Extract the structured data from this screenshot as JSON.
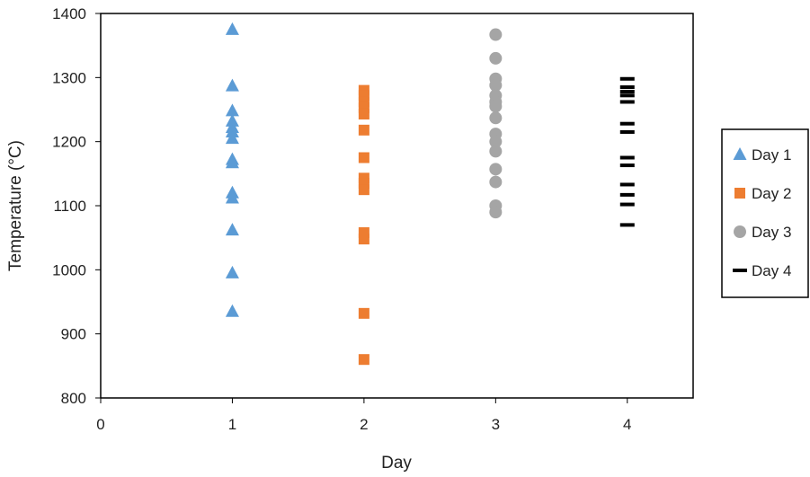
{
  "chart_data": {
    "type": "scatter",
    "xlabel": "Day",
    "ylabel": "Temperature (°C)",
    "xlim": [
      0,
      4.5
    ],
    "ylim": [
      800,
      1400
    ],
    "x_ticks": [
      0,
      1,
      2,
      3,
      4
    ],
    "y_ticks": [
      800,
      900,
      1000,
      1100,
      1200,
      1300,
      1400
    ],
    "grid": false,
    "legend_position": "right",
    "series": [
      {
        "name": "Day 1",
        "marker": "triangle",
        "color": "#5B9BD5",
        "points": [
          {
            "x": 1,
            "y": 1375
          },
          {
            "x": 1,
            "y": 1287
          },
          {
            "x": 1,
            "y": 1248
          },
          {
            "x": 1,
            "y": 1232
          },
          {
            "x": 1,
            "y": 1222
          },
          {
            "x": 1,
            "y": 1215
          },
          {
            "x": 1,
            "y": 1205
          },
          {
            "x": 1,
            "y": 1172
          },
          {
            "x": 1,
            "y": 1167
          },
          {
            "x": 1,
            "y": 1120
          },
          {
            "x": 1,
            "y": 1112
          },
          {
            "x": 1,
            "y": 1062
          },
          {
            "x": 1,
            "y": 995
          },
          {
            "x": 1,
            "y": 935
          }
        ]
      },
      {
        "name": "Day 2",
        "marker": "square",
        "color": "#ED7D31",
        "points": [
          {
            "x": 2,
            "y": 1280
          },
          {
            "x": 2,
            "y": 1272
          },
          {
            "x": 2,
            "y": 1262
          },
          {
            "x": 2,
            "y": 1253
          },
          {
            "x": 2,
            "y": 1243
          },
          {
            "x": 2,
            "y": 1218
          },
          {
            "x": 2,
            "y": 1175
          },
          {
            "x": 2,
            "y": 1143
          },
          {
            "x": 2,
            "y": 1135
          },
          {
            "x": 2,
            "y": 1125
          },
          {
            "x": 2,
            "y": 1058
          },
          {
            "x": 2,
            "y": 1048
          },
          {
            "x": 2,
            "y": 932
          },
          {
            "x": 2,
            "y": 860
          }
        ]
      },
      {
        "name": "Day 3",
        "marker": "circle",
        "color": "#A5A5A5",
        "points": [
          {
            "x": 3,
            "y": 1367
          },
          {
            "x": 3,
            "y": 1330
          },
          {
            "x": 3,
            "y": 1298
          },
          {
            "x": 3,
            "y": 1288
          },
          {
            "x": 3,
            "y": 1272
          },
          {
            "x": 3,
            "y": 1262
          },
          {
            "x": 3,
            "y": 1255
          },
          {
            "x": 3,
            "y": 1237
          },
          {
            "x": 3,
            "y": 1212
          },
          {
            "x": 3,
            "y": 1200
          },
          {
            "x": 3,
            "y": 1185
          },
          {
            "x": 3,
            "y": 1157
          },
          {
            "x": 3,
            "y": 1137
          },
          {
            "x": 3,
            "y": 1100
          },
          {
            "x": 3,
            "y": 1090
          }
        ]
      },
      {
        "name": "Day 4",
        "marker": "dash",
        "color": "#000000",
        "points": [
          {
            "x": 4,
            "y": 1298
          },
          {
            "x": 4,
            "y": 1285
          },
          {
            "x": 4,
            "y": 1278
          },
          {
            "x": 4,
            "y": 1272
          },
          {
            "x": 4,
            "y": 1262
          },
          {
            "x": 4,
            "y": 1228
          },
          {
            "x": 4,
            "y": 1215
          },
          {
            "x": 4,
            "y": 1175
          },
          {
            "x": 4,
            "y": 1163
          },
          {
            "x": 4,
            "y": 1133
          },
          {
            "x": 4,
            "y": 1117
          },
          {
            "x": 4,
            "y": 1102
          },
          {
            "x": 4,
            "y": 1070
          }
        ]
      }
    ]
  }
}
